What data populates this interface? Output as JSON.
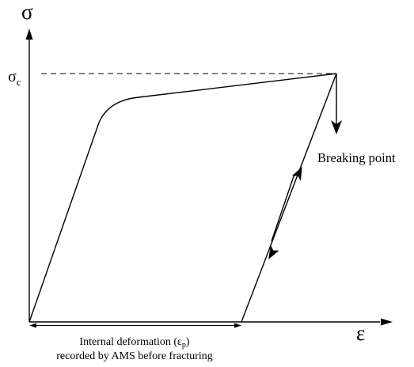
{
  "diagram": {
    "y_axis_symbol": "σ",
    "x_axis_symbol": "ε",
    "critical_stress_symbol": "σ",
    "critical_stress_subscript": "c",
    "breaking_point_label": "Breaking point",
    "caption_line1_before": "Internal deformation (ε",
    "caption_line1_subscript": "p",
    "caption_line1_after": ")",
    "caption_line2": "recorded by AMS before fracturing"
  }
}
